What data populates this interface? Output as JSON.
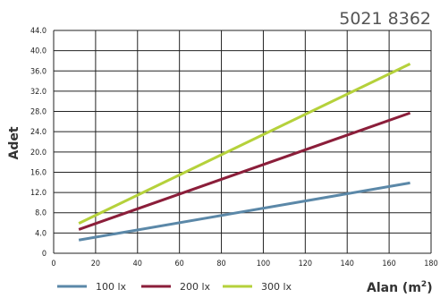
{
  "product_code": "5021 8362",
  "chart_data": {
    "type": "line",
    "title": "",
    "ylabel": "Adet",
    "xlabel": "Alan (m",
    "xlabel_sup": "2",
    "xlabel_close": ")",
    "xlim": [
      0,
      180
    ],
    "ylim": [
      0,
      44
    ],
    "x_ticks": [
      0,
      20,
      40,
      60,
      80,
      100,
      120,
      140,
      160,
      180
    ],
    "y_ticks": [
      0,
      4.0,
      8.0,
      12.0,
      16.0,
      20.0,
      24.0,
      28.0,
      32.0,
      36.0,
      40.0,
      44.0
    ],
    "y_tick_labels": [
      "0",
      "4.0",
      "8.0",
      "12.0",
      "16.0",
      "20.0",
      "24.0",
      "28.0",
      "32.0",
      "36.0",
      "40.0",
      "44.0"
    ],
    "grid": true,
    "legend_position": "bottom",
    "series": [
      {
        "name": "100 lx",
        "color": "#5b88a8",
        "x": [
          12,
          170
        ],
        "values": [
          2.6,
          13.9
        ]
      },
      {
        "name": "200 lx",
        "color": "#8b1e3a",
        "x": [
          12,
          170
        ],
        "values": [
          4.7,
          27.7
        ]
      },
      {
        "name": "300 lx",
        "color": "#b5d13b",
        "x": [
          12,
          170
        ],
        "values": [
          5.9,
          37.4
        ]
      }
    ]
  }
}
